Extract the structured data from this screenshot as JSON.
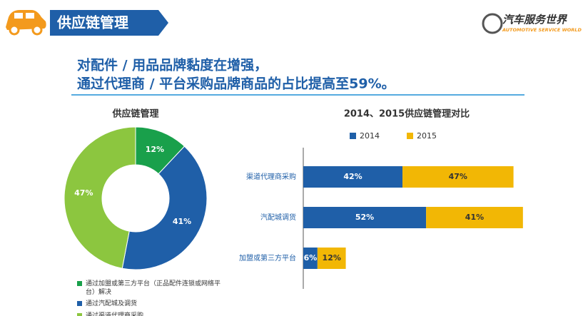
{
  "header": {
    "title": "供应链管理",
    "logo_text": "汽车服务世界",
    "logo_subtitle": "AUTOMOTIVE SERVICE WORLD"
  },
  "headline": [
    "对配件 / 用品品牌黏度在增强，",
    "通过代理商 / 平台采购品牌商品的占比提高至59%。"
  ],
  "chart_data": [
    {
      "type": "donut",
      "title": "供应链管理",
      "categories": [
        "通过加盟或第三方平台（正品配件连锁或网络平台）解决",
        "通过汽配城及调货",
        "通过渠道代理商采购"
      ],
      "values": [
        12,
        41,
        47
      ],
      "value_labels": [
        "12%",
        "41%",
        "47%"
      ],
      "colors": [
        "#19a04b",
        "#1f5fa8",
        "#8cc63f"
      ]
    },
    {
      "type": "stacked-barh",
      "title": "2014、2015供应链管理对比",
      "categories": [
        "渠道代理商采购",
        "汽配城调货",
        "加盟或第三方平台"
      ],
      "series": [
        {
          "name": "2014",
          "color": "#1f5fa8",
          "values": [
            42,
            52,
            6
          ],
          "value_labels": [
            "42%",
            "52%",
            "6%"
          ]
        },
        {
          "name": "2015",
          "color": "#f2b705",
          "values": [
            47,
            41,
            12
          ],
          "value_labels": [
            "47%",
            "41%",
            "12%"
          ]
        }
      ]
    }
  ]
}
